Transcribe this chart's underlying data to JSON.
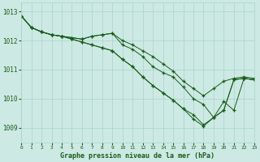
{
  "xlabel": "Graphe pression niveau de la mer (hPa)",
  "background_color": "#cde9e4",
  "grid_color": "#a8d4cc",
  "line_color": "#1a5c1a",
  "xlim": [
    0,
    23
  ],
  "ylim": [
    1008.5,
    1013.3
  ],
  "yticks": [
    1009,
    1010,
    1011,
    1012,
    1013
  ],
  "xticks": [
    0,
    1,
    2,
    3,
    4,
    5,
    6,
    7,
    8,
    9,
    10,
    11,
    12,
    13,
    14,
    15,
    16,
    17,
    18,
    19,
    20,
    21,
    22,
    23
  ],
  "series": [
    [
      1012.85,
      1012.45,
      1012.3,
      1012.2,
      1012.15,
      1012.1,
      1012.05,
      1012.15,
      1012.2,
      1012.25,
      1011.85,
      1011.7,
      1011.45,
      1011.1,
      1010.9,
      1010.75,
      1010.4,
      1010.0,
      1009.8,
      1009.35,
      1009.6,
      1010.65,
      1010.7,
      1010.65
    ],
    [
      1012.85,
      1012.45,
      1012.3,
      1012.2,
      1012.15,
      1012.1,
      1012.05,
      1012.15,
      1012.2,
      1012.25,
      1012.0,
      1011.85,
      1011.65,
      1011.45,
      1011.2,
      1010.95,
      1010.6,
      1010.35,
      1010.1,
      1010.35,
      1010.6,
      1010.7,
      1010.75,
      1010.7
    ],
    [
      1012.85,
      1012.45,
      1012.3,
      1012.2,
      1012.15,
      1012.05,
      1011.95,
      1011.85,
      1011.75,
      1011.65,
      1011.35,
      1011.1,
      1010.75,
      1010.45,
      1010.2,
      1009.95,
      1009.65,
      1009.45,
      1009.1,
      1009.35,
      1009.6,
      1010.65,
      1010.7,
      1010.65
    ],
    [
      1012.85,
      1012.45,
      1012.3,
      1012.2,
      1012.15,
      1012.05,
      1011.95,
      1011.85,
      1011.75,
      1011.65,
      1011.35,
      1011.1,
      1010.75,
      1010.45,
      1010.2,
      1009.95,
      1009.65,
      1009.3,
      1009.05,
      1009.35,
      1009.9,
      1009.6,
      1010.7,
      1010.65
    ]
  ]
}
